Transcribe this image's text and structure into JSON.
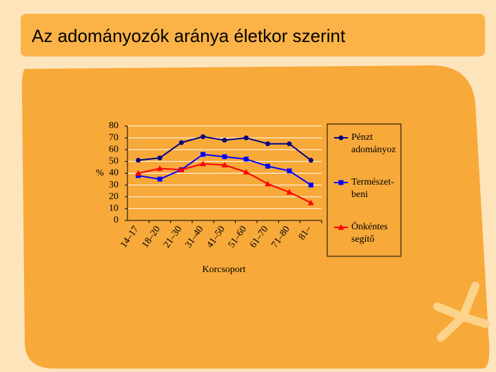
{
  "title": "Az adományozók aránya életkor szerint",
  "chart_data": {
    "type": "line",
    "x_label": "Korcsoport",
    "y_label": "%",
    "categories": [
      "14–17",
      "18–20",
      "21–30",
      "31–40",
      "41–50",
      "51–60",
      "61–70",
      "71–80",
      "81–"
    ],
    "series": [
      {
        "name": "Pénzt adományoz",
        "color": "#000080",
        "marker": "circle",
        "values": [
          51,
          53,
          66,
          71,
          68,
          70,
          65,
          65,
          51
        ]
      },
      {
        "name": "Természet- beni",
        "color": "#0000ff",
        "marker": "square",
        "values": [
          38,
          35,
          43,
          56,
          54,
          52,
          46,
          42,
          30
        ]
      },
      {
        "name": "Önkéntes segítő",
        "color": "#ff0000",
        "marker": "triangle",
        "values": [
          40,
          44,
          43,
          48,
          47,
          41,
          31,
          24,
          15
        ]
      }
    ],
    "ylim": [
      0,
      80
    ],
    "yticks": [
      0,
      10,
      20,
      30,
      40,
      50,
      60,
      70,
      80
    ],
    "grid": true,
    "legend": "right"
  }
}
